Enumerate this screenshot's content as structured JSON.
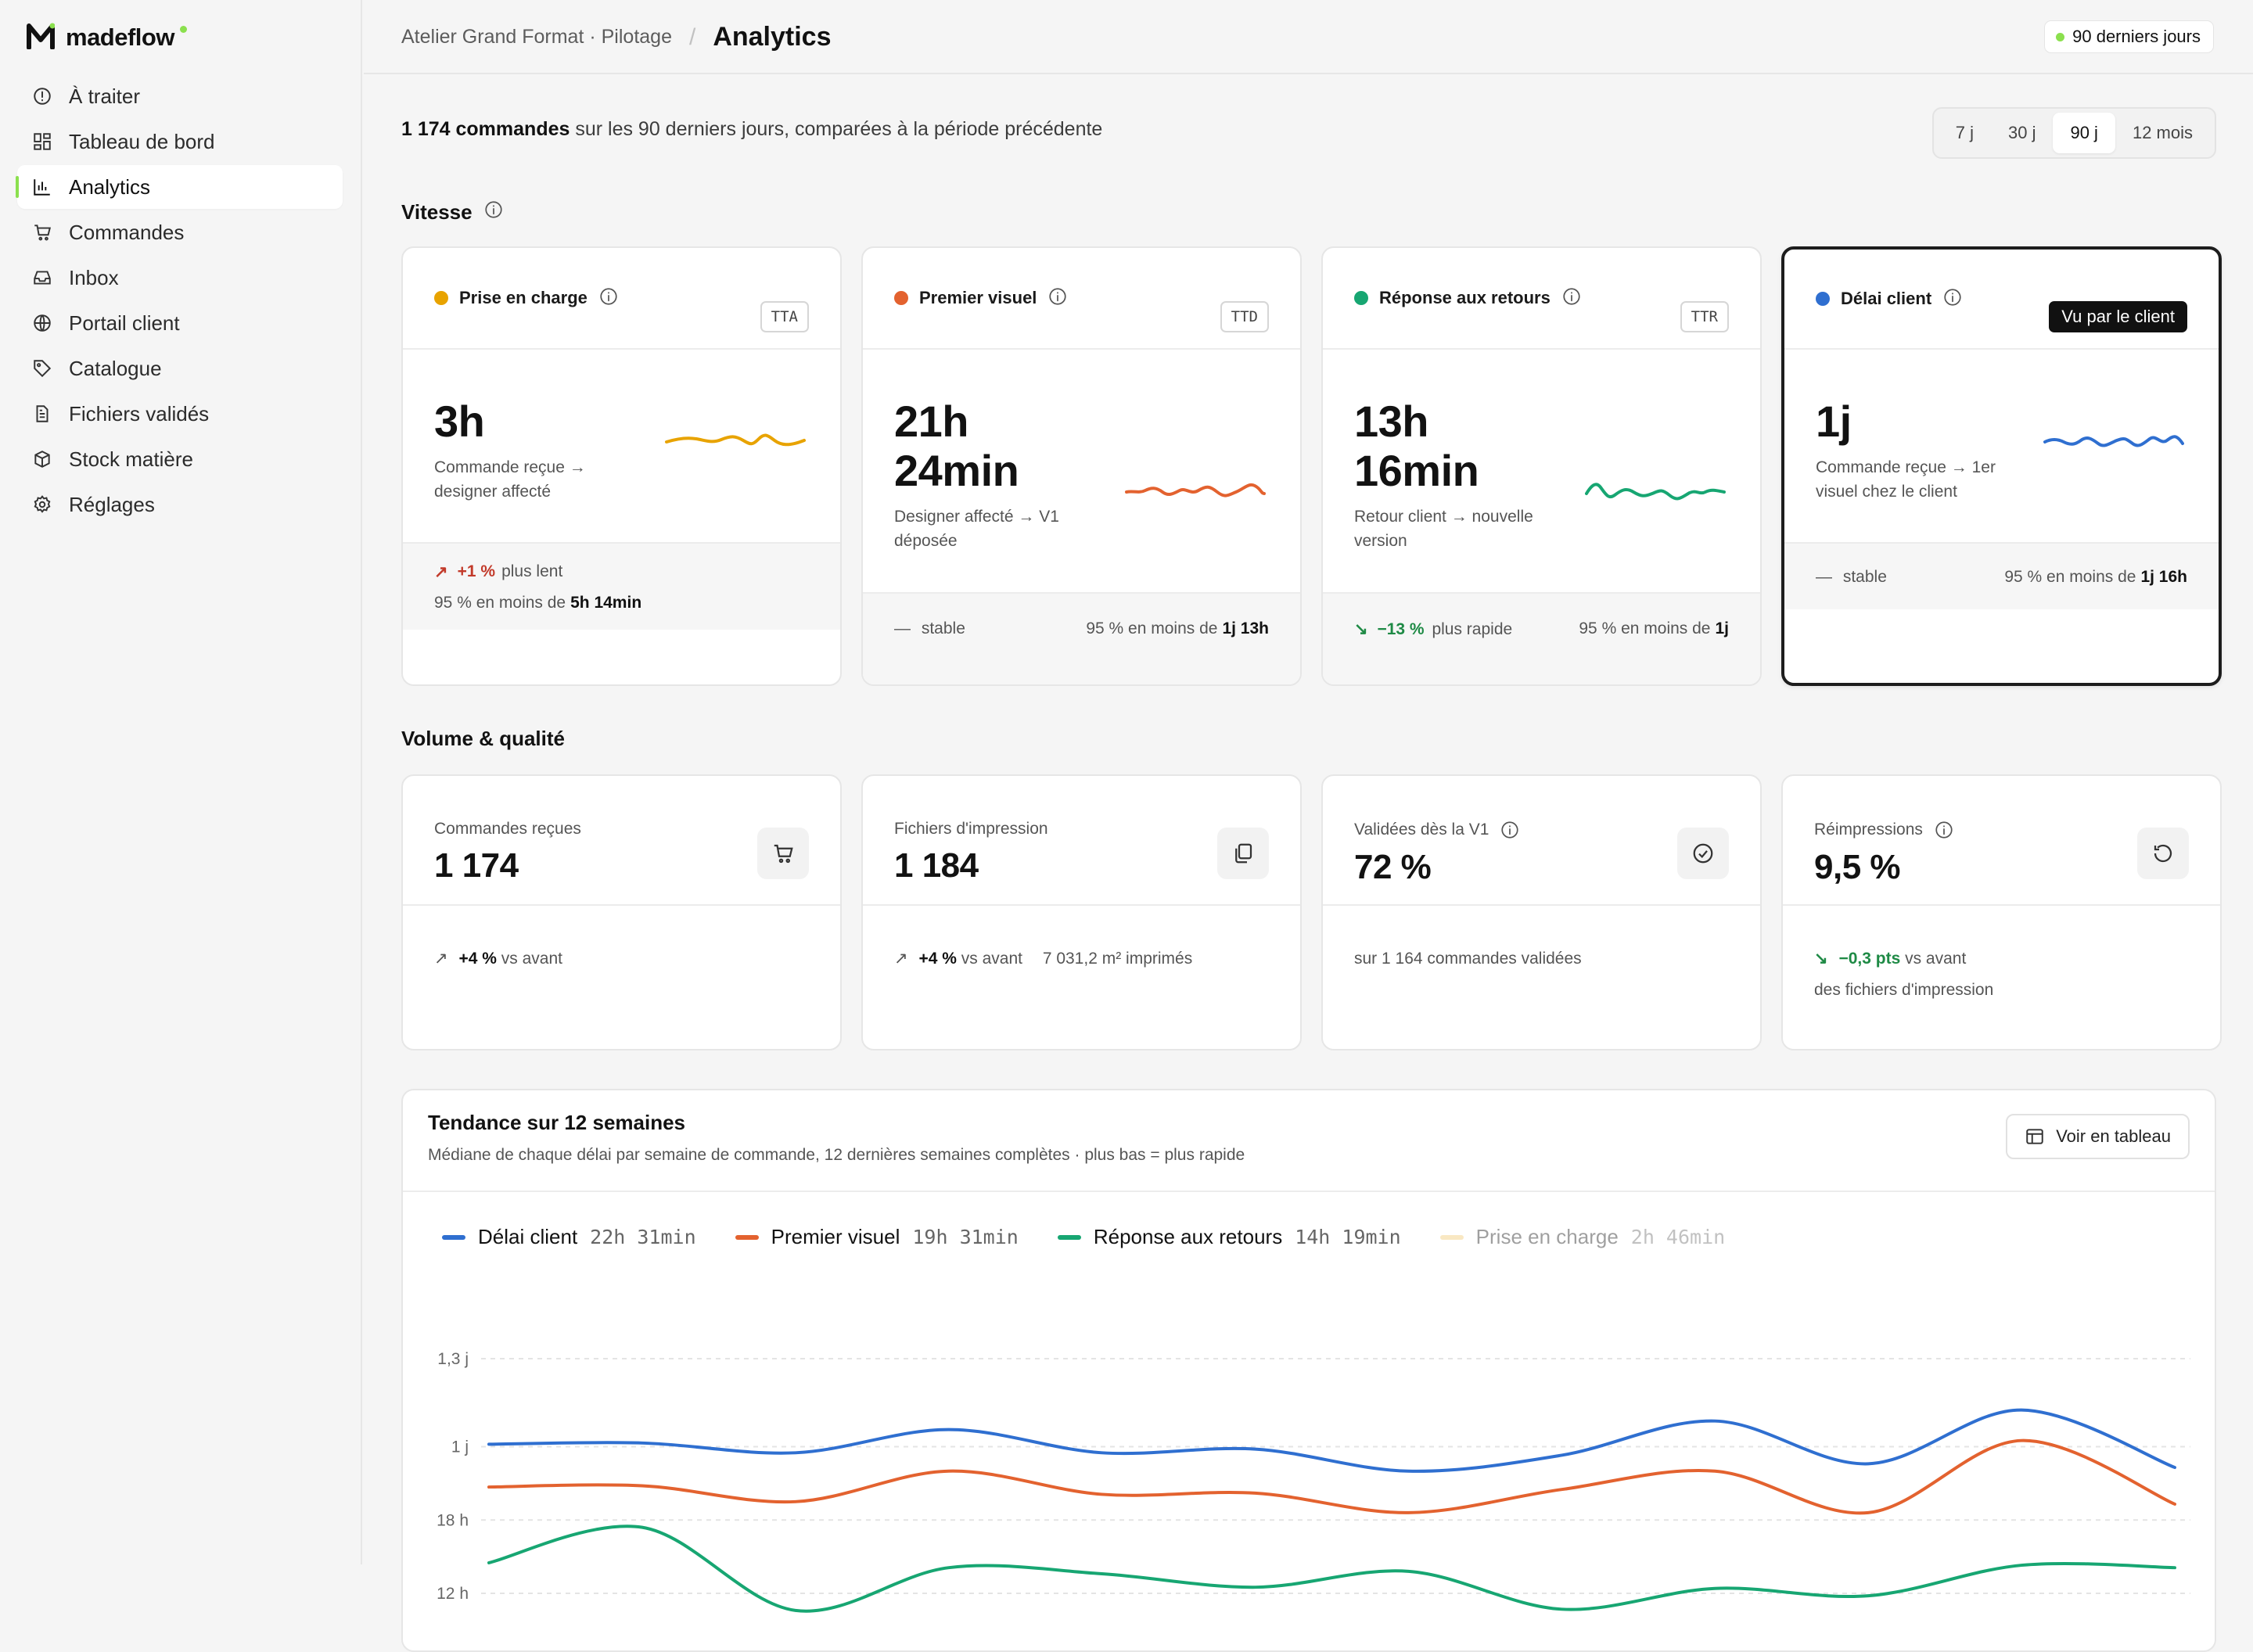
{
  "app": {
    "name": "madeflow"
  },
  "sidebar": {
    "items": [
      {
        "label": "À traiter",
        "icon": "alert-circle-icon"
      },
      {
        "label": "Tableau de bord",
        "icon": "grid-icon"
      },
      {
        "label": "Analytics",
        "icon": "bar-chart-icon",
        "active": true
      },
      {
        "label": "Commandes",
        "icon": "cart-icon"
      },
      {
        "label": "Inbox",
        "icon": "inbox-icon"
      },
      {
        "label": "Portail client",
        "icon": "globe-icon"
      },
      {
        "label": "Catalogue",
        "icon": "tag-icon"
      },
      {
        "label": "Fichiers validés",
        "icon": "file-icon"
      },
      {
        "label": "Stock matière",
        "icon": "box-icon"
      },
      {
        "label": "Réglages",
        "icon": "gear-icon"
      }
    ]
  },
  "header": {
    "breadcrumb_parent": "Atelier Grand Format · Pilotage",
    "separator": "/",
    "title": "Analytics",
    "period_badge": "90 derniers jours"
  },
  "summary": {
    "count": "1 174 commandes",
    "rest": " sur les 90 derniers jours, comparées à la période précédente"
  },
  "ranges": [
    "7 j",
    "30 j",
    "90 j",
    "12 mois"
  ],
  "selected_range": "90 j",
  "speed": {
    "title": "Vitesse",
    "cards": [
      {
        "label": "Prise en charge",
        "tag": "TTA",
        "color": "#e8a300",
        "value_l1": "3h",
        "value_l2": "",
        "desc": "Commande reçue → designer affecté",
        "trend_arrow": "↗",
        "trend_value": "+1 %",
        "trend_text": "plus lent",
        "trend_dir": "up",
        "p95_label": "95 % en moins de",
        "p95_value": "5h 14min"
      },
      {
        "label": "Premier visuel",
        "tag": "TTD",
        "color": "#e3622f",
        "value_l1": "21h",
        "value_l2": "24min",
        "desc": "Designer affecté → V1 déposée",
        "trend_arrow": "—",
        "trend_value": "",
        "trend_text": "stable",
        "trend_dir": "flat",
        "p95_label": "95 % en moins de",
        "p95_value": "1j 13h"
      },
      {
        "label": "Réponse aux retours",
        "tag": "TTR",
        "color": "#17a672",
        "value_l1": "13h",
        "value_l2": "16min",
        "desc": "Retour client → nouvelle version",
        "trend_arrow": "↘",
        "trend_value": "−13 %",
        "trend_text": "plus rapide",
        "trend_dir": "down",
        "p95_label": "95 % en moins de",
        "p95_value": "1j"
      },
      {
        "label": "Délai client",
        "tag": "Vu par le client",
        "color": "#2f6fd0",
        "value_l1": "1j",
        "value_l2": "",
        "desc": "Commande reçue → 1er visuel chez le client",
        "trend_arrow": "—",
        "trend_value": "",
        "trend_text": "stable",
        "trend_dir": "flat",
        "p95_label": "95 % en moins de",
        "p95_value": "1j 16h"
      }
    ]
  },
  "volume": {
    "title": "Volume & qualité",
    "cards": [
      {
        "label": "Commandes reçues",
        "value": "1 174",
        "icon": "cart-icon",
        "info": false,
        "line1_arrow": "↗",
        "line1_value": "+4 %",
        "line1_text": "vs avant",
        "line1_extra": "",
        "line1_dir": "neutral",
        "line2": ""
      },
      {
        "label": "Fichiers d'impression",
        "value": "1 184",
        "icon": "copy-icon",
        "info": false,
        "line1_arrow": "↗",
        "line1_value": "+4 %",
        "line1_text": "vs avant",
        "line1_extra": "7 031,2 m² imprimés",
        "line1_dir": "neutral",
        "line2": ""
      },
      {
        "label": "Validées dès la V1",
        "value": "72 %",
        "icon": "check-circle-icon",
        "info": true,
        "line1_arrow": "",
        "line1_value": "",
        "line1_text": "sur 1 164 commandes validées",
        "line1_extra": "",
        "line1_dir": "neutral",
        "line2": ""
      },
      {
        "label": "Réimpressions",
        "value": "9,5 %",
        "icon": "refresh-icon",
        "info": true,
        "line1_arrow": "↘",
        "line1_value": "−0,3 pts",
        "line1_text": "vs avant",
        "line1_extra": "",
        "line1_dir": "down",
        "line2": "des fichiers d'impression"
      }
    ]
  },
  "trend": {
    "title": "Tendance sur 12 semaines",
    "subtitle": "Médiane de chaque délai par semaine de commande, 12 dernières semaines complètes · plus bas = plus rapide",
    "button": "Voir en tableau"
  },
  "chart_data": {
    "type": "line",
    "y_ticks": [
      {
        "label": "1,3 j",
        "hours": 31.2
      },
      {
        "label": "1 j",
        "hours": 24
      },
      {
        "label": "18 h",
        "hours": 18
      },
      {
        "label": "12 h",
        "hours": 12
      }
    ],
    "grid": true,
    "legend_position": "top-left",
    "x": [
      1,
      2,
      3,
      4,
      5,
      6,
      7,
      8,
      9,
      10,
      11,
      12
    ],
    "series": [
      {
        "name": "Délai client",
        "summary": "22h 31min",
        "color": "#2f6fd0",
        "visible": true,
        "values_hours": [
          24.2,
          24.3,
          23.5,
          25.4,
          23.5,
          23.8,
          22.0,
          23.3,
          26.1,
          22.6,
          27.0,
          22.3
        ]
      },
      {
        "name": "Premier visuel",
        "summary": "19h 31min",
        "color": "#e3622f",
        "visible": true,
        "values_hours": [
          20.7,
          20.8,
          19.5,
          22.0,
          20.1,
          20.2,
          18.6,
          20.5,
          22.0,
          18.6,
          24.5,
          19.3
        ]
      },
      {
        "name": "Réponse aux retours",
        "summary": "14h 19min",
        "color": "#17a672",
        "visible": true,
        "values_hours": [
          14.5,
          17.4,
          10.6,
          14.1,
          13.6,
          12.5,
          13.8,
          10.7,
          12.4,
          11.8,
          14.3,
          14.1
        ]
      },
      {
        "name": "Prise en charge",
        "summary": "2h 46min",
        "color": "#f2c66b",
        "visible": false,
        "values_hours": []
      }
    ]
  }
}
